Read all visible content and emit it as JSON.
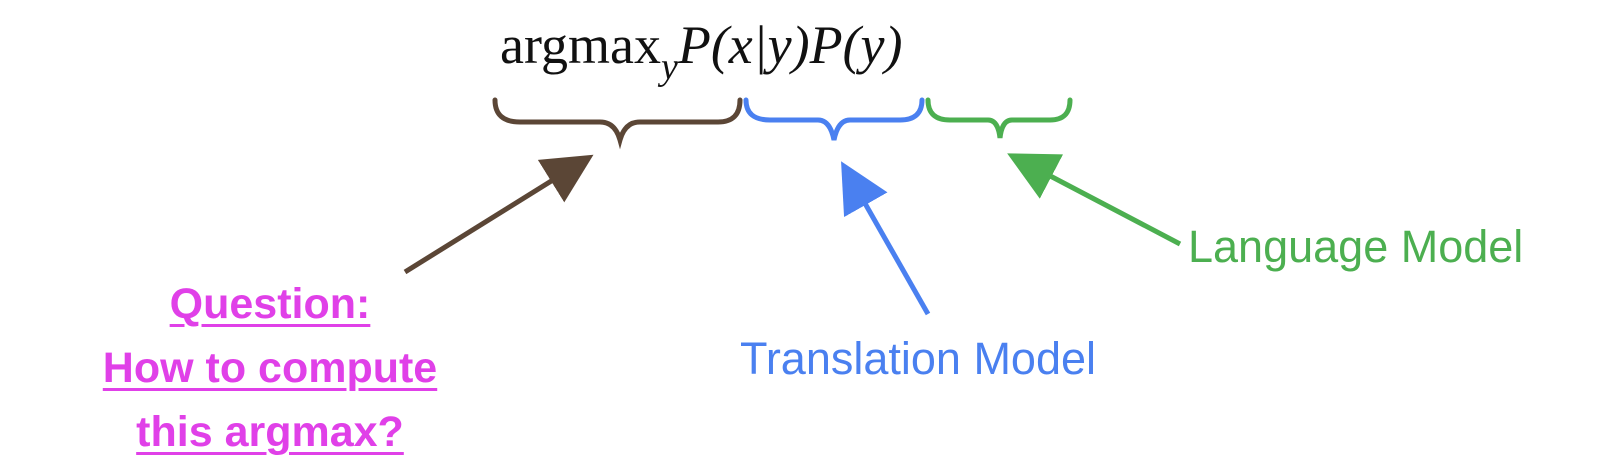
{
  "formula": {
    "argmax": "argmax",
    "subscript": "y",
    "translation_term": "P(x|y)",
    "prior_term": "P(y)"
  },
  "labels": {
    "language_model": "Language Model",
    "translation_model": "Translation Model"
  },
  "question": {
    "lines": [
      "Question:",
      "How to compute",
      "this argmax?"
    ]
  },
  "colors": {
    "argmax_brace": "#5b4636",
    "translation": "#4a80f0",
    "language": "#4caf50",
    "question": "#e040e8"
  }
}
